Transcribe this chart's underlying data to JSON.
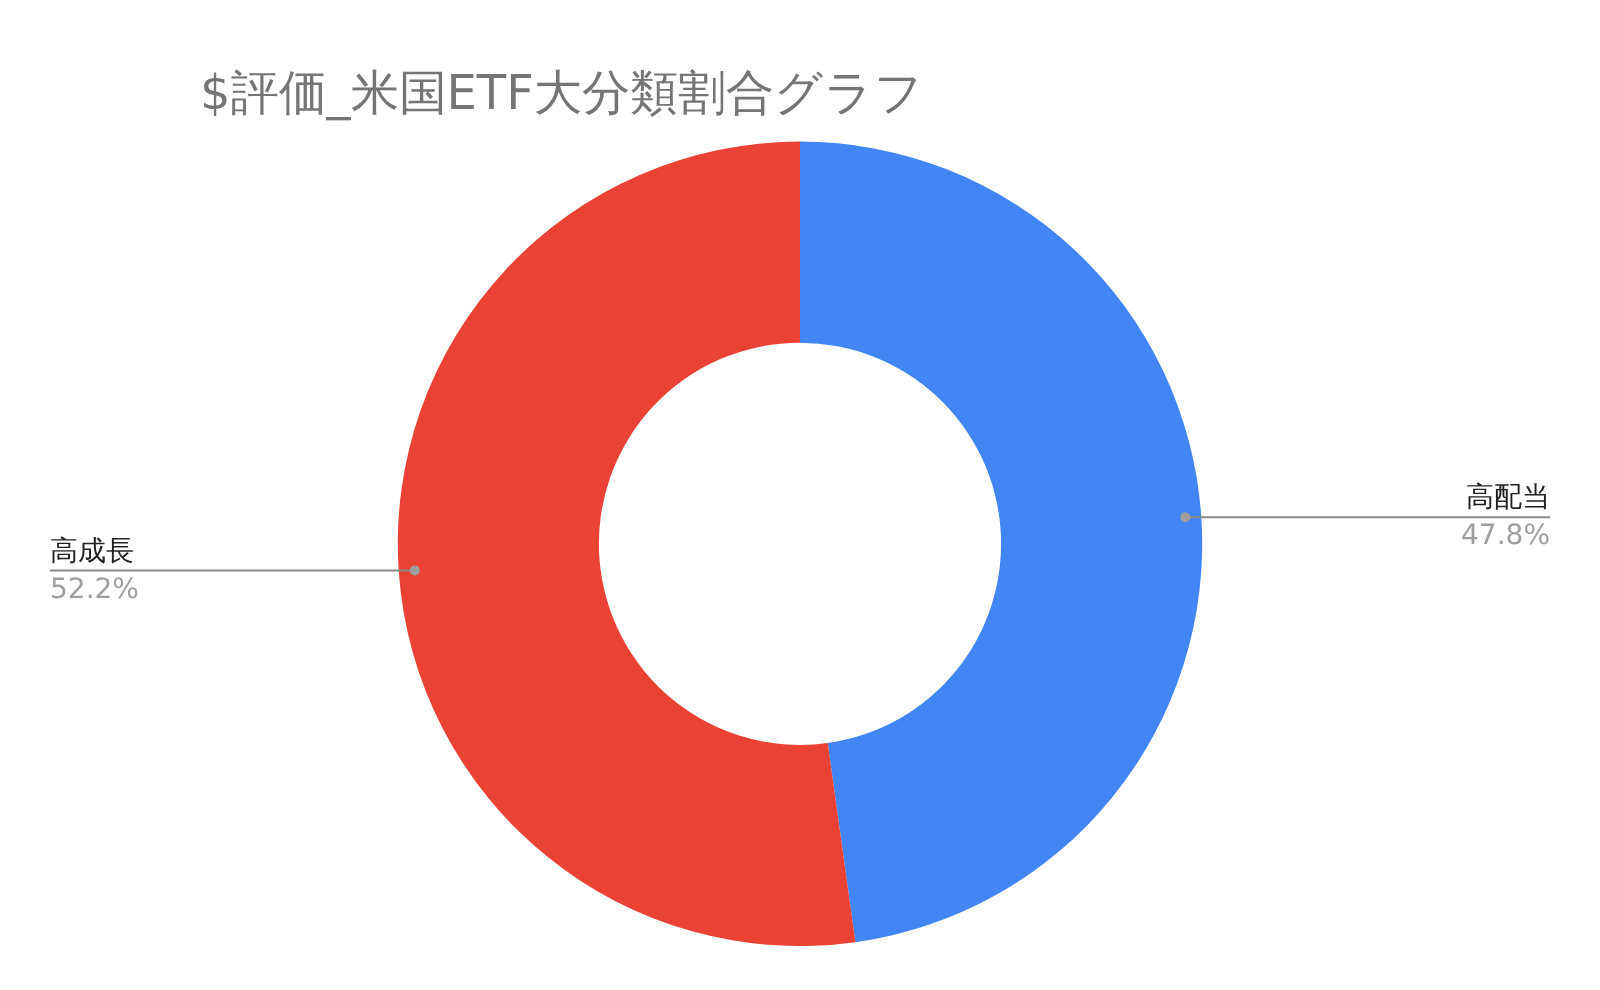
{
  "chart_data": {
    "type": "donut",
    "title": "$評価_米国ETF大分類割合グラフ",
    "categories": [
      "高配当",
      "高成長"
    ],
    "values": [
      47.8,
      52.2
    ],
    "colors": [
      "#4285f4",
      "#ea4335"
    ],
    "value_labels": [
      "47.8%",
      "52.2%"
    ],
    "legend": false
  }
}
